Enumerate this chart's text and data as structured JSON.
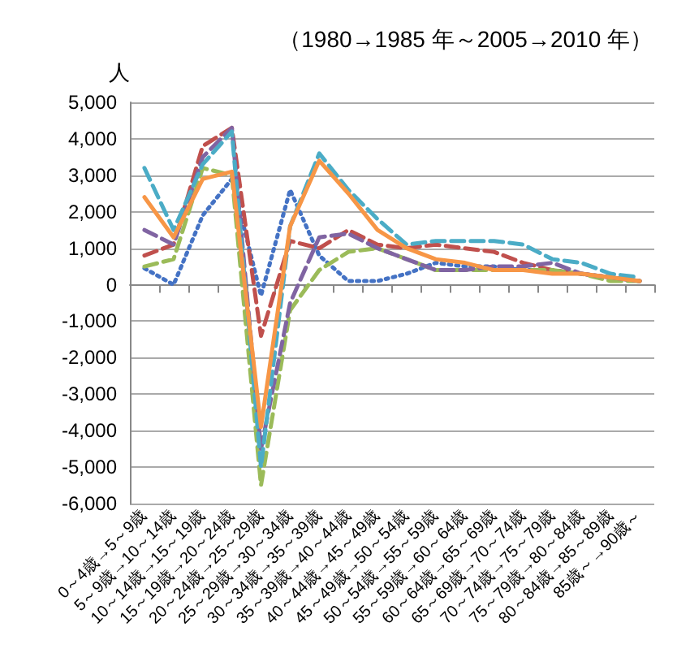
{
  "chart_data": {
    "type": "line",
    "title": "（1980→1985 年～2005→2010 年）",
    "ylabel": "人",
    "categories": [
      "0～4歳→5～9歳",
      "5～9歳→10～14歳",
      "10～14歳→15～19歳",
      "15～19歳→20～24歳",
      "20～24歳→25～29歳",
      "25～29歳→30～34歳",
      "30～34歳→35～39歳",
      "35～39歳→40～44歳",
      "40～44歳→45～49歳",
      "45～49歳→50～54歳",
      "50～54歳→55～59歳",
      "55～59歳→60～64歳",
      "60～64歳→65～69歳",
      "65～69歳→70～74歳",
      "70～74歳→75～79歳",
      "75～79歳→80～84歳",
      "80～84歳→85～89歳",
      "85歳～→90歳～"
    ],
    "series": [
      {
        "color": "#4472c4",
        "line_style": "dotted",
        "values": [
          450,
          0,
          1900,
          2900,
          -300,
          2600,
          800,
          100,
          100,
          300,
          600,
          500,
          500,
          400,
          400,
          300,
          200,
          100
        ]
      },
      {
        "color": "#c0504d",
        "line_style": "dashed",
        "values": [
          800,
          1100,
          3800,
          4300,
          -1400,
          1200,
          1000,
          1500,
          1100,
          1000,
          1100,
          1000,
          900,
          600,
          400,
          300,
          200,
          100
        ]
      },
      {
        "color": "#9bbb59",
        "line_style": "dashed",
        "values": [
          500,
          700,
          3200,
          3000,
          -5500,
          -700,
          400,
          900,
          1000,
          700,
          400,
          400,
          400,
          400,
          400,
          300,
          100,
          100
        ]
      },
      {
        "color": "#8064a2",
        "line_style": "dashed",
        "values": [
          1500,
          1100,
          3500,
          4300,
          -4500,
          -500,
          1300,
          1400,
          1000,
          700,
          400,
          400,
          500,
          500,
          600,
          300,
          200,
          100
        ]
      },
      {
        "color": "#4bacc6",
        "line_style": "dashed",
        "values": [
          3200,
          1500,
          3300,
          4200,
          -5000,
          1600,
          3600,
          2600,
          1800,
          1100,
          1200,
          1200,
          1200,
          1100,
          700,
          600,
          300,
          200
        ]
      },
      {
        "color": "#f79646",
        "line_style": "solid",
        "values": [
          2400,
          1300,
          2900,
          3100,
          -3900,
          1600,
          3400,
          2500,
          1500,
          1000,
          700,
          600,
          400,
          400,
          300,
          300,
          200,
          100
        ]
      }
    ],
    "ylim": [
      -6000,
      5000
    ],
    "yticks": [
      {
        "value": -6000,
        "label": "-6,000"
      },
      {
        "value": -5000,
        "label": "-5,000"
      },
      {
        "value": -4000,
        "label": "-4,000"
      },
      {
        "value": -3000,
        "label": "-3,000"
      },
      {
        "value": -2000,
        "label": "-2,000"
      },
      {
        "value": -1000,
        "label": "-1,000"
      },
      0,
      {
        "value": 1000,
        "label": "1,000"
      },
      {
        "value": 2000,
        "label": "2,000"
      },
      {
        "value": 3000,
        "label": "3,000"
      },
      {
        "value": 4000,
        "label": "4,000"
      },
      {
        "value": 5000,
        "label": "5,000"
      }
    ],
    "grid": "y",
    "marker": "none"
  }
}
